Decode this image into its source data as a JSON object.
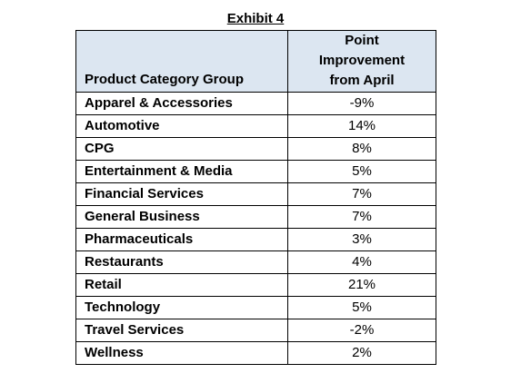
{
  "title": "Exhibit 4",
  "table": {
    "header": {
      "category": "Product Category Group",
      "improvement_lines": [
        "Point",
        "Improvement",
        "from April"
      ]
    },
    "rows": [
      {
        "category": "Apparel & Accessories",
        "value": "-9%"
      },
      {
        "category": "Automotive",
        "value": "14%"
      },
      {
        "category": "CPG",
        "value": "8%"
      },
      {
        "category": "Entertainment & Media",
        "value": "5%"
      },
      {
        "category": "Financial Services",
        "value": "7%"
      },
      {
        "category": "General Business",
        "value": "7%"
      },
      {
        "category": "Pharmaceuticals",
        "value": "3%"
      },
      {
        "category": "Restaurants",
        "value": "4%"
      },
      {
        "category": "Retail",
        "value": "21%"
      },
      {
        "category": "Technology",
        "value": "5%"
      },
      {
        "category": "Travel Services",
        "value": "-2%"
      },
      {
        "category": "Wellness",
        "value": "2%"
      }
    ]
  },
  "colors": {
    "header_background": "#dce6f1",
    "border": "#000000"
  }
}
